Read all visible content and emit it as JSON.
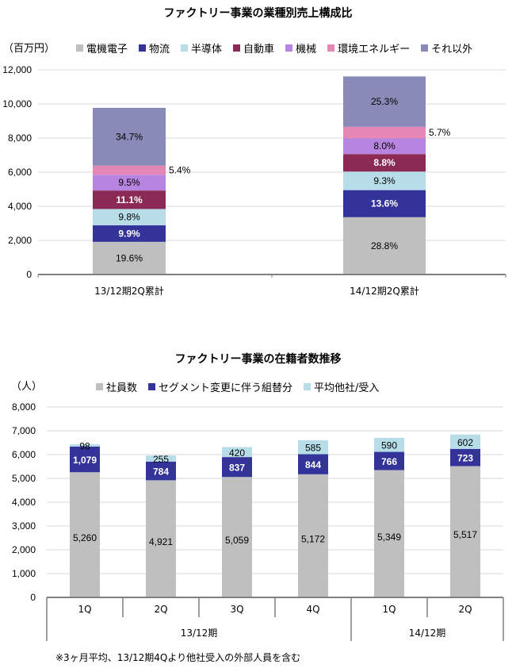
{
  "chart_data": [
    {
      "type": "bar",
      "stacked": true,
      "title": "ファクトリー事業の業種別売上構成比",
      "ylabel": "（百万円）",
      "ylim": [
        0,
        12000
      ],
      "yticks": [
        0,
        2000,
        4000,
        6000,
        8000,
        10000,
        12000
      ],
      "ytick_labels": [
        "0",
        "2,000",
        "4,000",
        "6,000",
        "8,000",
        "10,000",
        "12,000"
      ],
      "grid": true,
      "legend_position": "top",
      "categories": [
        "13/12期2Q累計",
        "14/12期2Q累計"
      ],
      "totals": [
        9770,
        11670
      ],
      "series": [
        {
          "name": "電機電子",
          "color": "#bfbfbf",
          "percent": [
            19.6,
            28.8
          ],
          "labels": [
            "19.6%",
            "28.8%"
          ],
          "label_color": "#000000",
          "bold": false
        },
        {
          "name": "物流",
          "color": "#333399",
          "percent": [
            9.9,
            13.6
          ],
          "labels": [
            "9.9%",
            "13.6%"
          ],
          "label_color": "#ffffff",
          "bold": true
        },
        {
          "name": "半導体",
          "color": "#b7dee8",
          "percent": [
            9.8,
            9.3
          ],
          "labels": [
            "9.8%",
            "9.3%"
          ],
          "label_color": "#000000",
          "bold": false
        },
        {
          "name": "自動車",
          "color": "#8b2a55",
          "percent": [
            11.1,
            8.8
          ],
          "labels": [
            "11.1%",
            "8.8%"
          ],
          "label_color": "#ffffff",
          "bold": true
        },
        {
          "name": "機械",
          "color": "#b784e0",
          "percent": [
            9.5,
            8.0
          ],
          "labels": [
            "9.5%",
            "8.0%"
          ],
          "label_color": "#000000",
          "bold": false
        },
        {
          "name": "環境エネルギー",
          "color": "#e587b5",
          "percent": [
            5.4,
            5.7
          ],
          "labels": [
            "5.4%",
            "5.7%"
          ],
          "label_color": "#000000",
          "bold": false,
          "label_outside": true
        },
        {
          "name": "それ以外",
          "color": "#8a8ab8",
          "percent": [
            34.7,
            25.3
          ],
          "labels": [
            "34.7%",
            "25.3%"
          ],
          "label_color": "#000000",
          "bold": false
        }
      ]
    },
    {
      "type": "bar",
      "stacked": true,
      "title": "ファクトリー事業の在籍者数推移",
      "ylabel": "（人）",
      "ylim": [
        0,
        8000
      ],
      "yticks": [
        0,
        1000,
        2000,
        3000,
        4000,
        5000,
        6000,
        7000,
        8000
      ],
      "ytick_labels": [
        "0",
        "1,000",
        "2,000",
        "3,000",
        "4,000",
        "5,000",
        "6,000",
        "7,000",
        "8,000"
      ],
      "grid": true,
      "legend_position": "top",
      "categories": [
        "1Q",
        "2Q",
        "3Q",
        "4Q",
        "1Q",
        "2Q"
      ],
      "groups": [
        {
          "label": "13/12期",
          "count": 4
        },
        {
          "label": "14/12期",
          "count": 2
        }
      ],
      "series": [
        {
          "name": "社員数",
          "color": "#bfbfbf",
          "values": [
            5260,
            4921,
            5059,
            5172,
            5349,
            5517
          ],
          "labels": [
            "5,260",
            "4,921",
            "5,059",
            "5,172",
            "5,349",
            "5,517"
          ],
          "label_color": "#000000",
          "bold": false
        },
        {
          "name": "セグメント変更に伴う組替分",
          "color": "#333399",
          "values": [
            1079,
            784,
            837,
            844,
            766,
            723
          ],
          "labels": [
            "1,079",
            "784",
            "837",
            "844",
            "766",
            "723"
          ],
          "label_color": "#ffffff",
          "bold": true
        },
        {
          "name": "平均他社/受入",
          "color": "#b7dee8",
          "values": [
            98,
            255,
            420,
            585,
            590,
            602
          ],
          "labels": [
            "98",
            "255",
            "420",
            "585",
            "590",
            "602"
          ],
          "label_color": "#000000",
          "bold": false
        }
      ],
      "footnote": "※3ヶ月平均、13/12期4Qより他社受入の外部人員を含む"
    }
  ]
}
